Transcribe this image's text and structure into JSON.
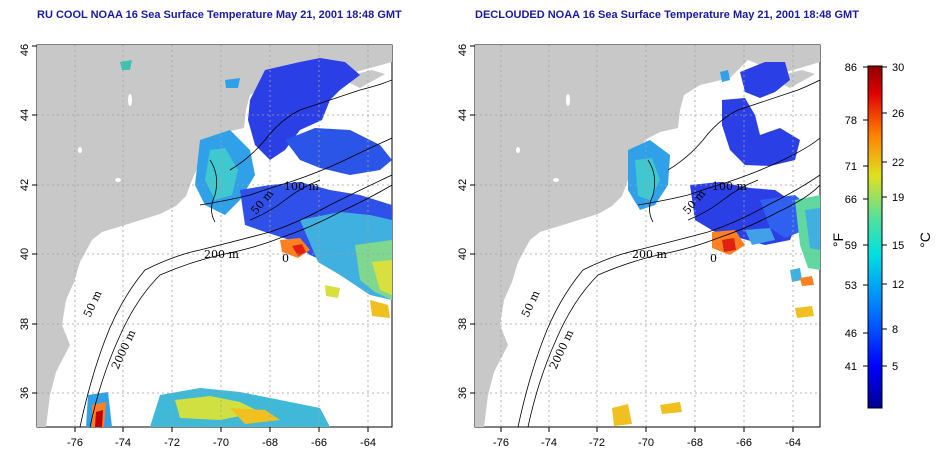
{
  "titles": {
    "left": "RU COOL NOAA 16 Sea Surface Temperature May 21, 2001 18:48 GMT",
    "right": "DECLOUDED NOAA 16 Sea Surface Temperature May 21, 2001 18:48 GMT"
  },
  "axes": {
    "lon_ticks": [
      "-76",
      "-74",
      "-72",
      "-70",
      "-68",
      "-66",
      "-64"
    ],
    "lat_ticks": [
      "36",
      "38",
      "40",
      "42",
      "44",
      "46"
    ],
    "lon_range": [
      -77,
      -63
    ],
    "lat_range": [
      35,
      46
    ],
    "grid": "dotted"
  },
  "contour_labels": {
    "c50": "50 m",
    "c100": "100 m",
    "c200": "200 m",
    "c2000": "2000 m",
    "c0": "0"
  },
  "colorbar": {
    "fahrenheit_ticks": [
      "86",
      "78",
      "71",
      "66",
      "59",
      "53",
      "46",
      "41"
    ],
    "celsius_ticks": [
      "30",
      "26",
      "22",
      "19",
      "15",
      "12",
      "8",
      "5"
    ],
    "fahrenheit_unit": "°F",
    "celsius_unit": "°C",
    "colors": [
      "#000090",
      "#0000ff",
      "#0080ff",
      "#00e0e0",
      "#50e0a0",
      "#e0e020",
      "#ff8000",
      "#e00000",
      "#900000"
    ]
  },
  "colors": {
    "land": "#c8c8c8",
    "title": "#1a1aa0",
    "cold": "#2040e0",
    "cool": "#30a0e0",
    "warm": "#ff8020"
  }
}
